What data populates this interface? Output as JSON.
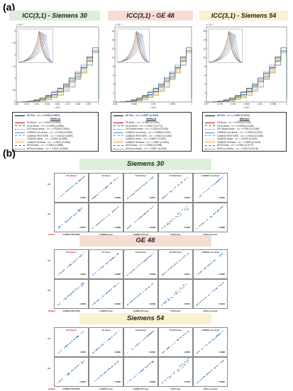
{
  "panel_a_label": "(a)",
  "panel_b_label": "(b)",
  "plots": [
    {
      "title": "ICC(3,1) - Siemens 30",
      "bg": "#dcefd8",
      "xlabel": "r ICC",
      "exp": "× 10⁻⁸",
      "xticks": [
        "0.92",
        "0.93",
        "0.94",
        "0.95",
        "0.96",
        "0.97",
        "0.98",
        "0.99",
        "1"
      ],
      "yticks": [
        "0",
        "0.5",
        "1",
        "1.5",
        "2",
        "2.5",
        "3"
      ]
    },
    {
      "title": "ICC(3,1) - GE 48",
      "bg": "#f6ddd3",
      "xlabel": "r ICC",
      "exp": "× 10⁻⁸",
      "xticks": [
        "0.98",
        "0.985",
        "0.99",
        "0.995",
        "1"
      ],
      "yticks": [
        "0",
        "2",
        "4",
        "6",
        "8",
        "10",
        "12",
        "14",
        "16"
      ]
    },
    {
      "title": "ICC(3,1) - Siemens 54",
      "bg": "#fbf0cf",
      "xlabel": "r ICC",
      "exp": "× 10⁻⁸",
      "xticks": [
        "0.97",
        "0.975",
        "0.98",
        "0.985",
        "0.99",
        "0.995",
        "1"
      ],
      "yticks": [
        "0",
        "2",
        "4",
        "6",
        "8",
        "10",
        "12",
        "14",
        "16"
      ]
    }
  ],
  "legends": [
    {
      "top": "All FAs - <r> = 0.9445 (0.0541)",
      "without": "Without",
      "entries": [
        "FA linear - <r> = 0.9502 (0.0593)",
        "FA W linear - <r> = 0.9396 (0.0580)",
        "DSI Studio linear - <r> = 0.9399 (0.0593)",
        "CAMINO non-linear - <r> = 0.9445 (0.0589)",
        "CAMINO RESTORE - <r> = 0.9416 (0.0589)",
        "CAMINO linear - <r> = 0.9502 (0.0595)",
        "CAMINO W-linear - <r> = 0.9391 (0.0593)",
        "AFNI linear - <r> = 0.9693 (0.0586)",
        "AFNI non-linear - <r> = 0.9437 (0.0589)"
      ]
    },
    {
      "top": "All FAs - <r> = 0.9907 (0.0164)",
      "without": "Without",
      "entries": [
        "FA linear - <r> = 0.9897 (0.0181)",
        "FA W linear - <r> = 0.9907 (0.0174)",
        "DSI Studio linear - <r> = 0.9918 (0.0185)",
        "CAMINO non-linear - <r> = 0.9898 (0.0181)",
        "CAMINO RESTORE - <r> = 0.9923 (0.0169)",
        "CAMINO linear - <r> = 0.9897 (0.0181)",
        "CAMINO W-linear - <r> = 0.9897 (0.0181)",
        "AFNI linear - <r> = 0.9926 (0.0098)",
        "AFNI non-linear - <r> = 0.9907 (0.0160)"
      ]
    },
    {
      "top": "All FAs - <r> = 0.9903 (0.0141)",
      "without": "Without",
      "entries": [
        "FA linear - <r> = 0.9903 (0.0193)",
        "FA W linear - <r> = 0.9905 (0.0180)",
        "DSI Studio linear - <r> = 0.9911 (0.0185)",
        "CAMINO non-linear - <r> = 0.9903 (0.0193)",
        "CAMINO RESTORE - <r> = 0.9916 (0.0185)",
        "CAMINO linear - <r> = 0.9903 (0.0191)",
        "CAMINO W-linear - <r> = 0.9903 (0.0193)",
        "AFNI linear - <r> = 0.9941 (0.0177)",
        "AFNI non-linear - <r> = 0.9913 (0.0178)"
      ]
    }
  ],
  "series_colors": [
    "#000000",
    "#d0021b",
    "#2e7d32",
    "#7a7a7a",
    "#4a90e2",
    "#9b7fd1",
    "#cddc39",
    "#f5a623",
    "#3b7d2f",
    "#1f4e9e"
  ],
  "scanners": [
    {
      "name": "Siemens 30",
      "bg": "#dcefd8",
      "row1": [
        "1.0000",
        "0.9999",
        "0.9997",
        "0.9997",
        "0.9994"
      ],
      "row2": [
        "0.9972",
        "0.9999",
        "0.9999",
        "0.9452",
        "0.9998"
      ]
    },
    {
      "name": "GE 48",
      "bg": "#f6ddd3",
      "row1": [
        "1.0000",
        "0.9999",
        "0.9998",
        "0.9917",
        "0.9999"
      ],
      "row2": [
        "0.9839",
        "0.9999",
        "0.9999",
        "0.8724",
        "0.9916"
      ]
    },
    {
      "name": "Siemens 54",
      "bg": "#fbf0cf",
      "row1": [
        "1.0000",
        "0.9999",
        "0.9995",
        "0.9962",
        "0.9998"
      ],
      "row2": [
        "0.9918",
        "0.9999",
        "0.9999",
        "0.7633",
        "0.9981"
      ]
    }
  ],
  "cell_top_labels": [
    "All",
    "FA linear",
    "FA W-linear",
    "FA DSI linear",
    "CAMINO non-linear"
  ],
  "cell_bottom_labels": [
    "CAMINO RESTORE",
    "CAMINO linear",
    "CAMINO W-linear",
    "AFNI linear",
    "AFNI non-linear"
  ],
  "without_label": "without",
  "row_labels": [
    "All",
    "All"
  ]
}
